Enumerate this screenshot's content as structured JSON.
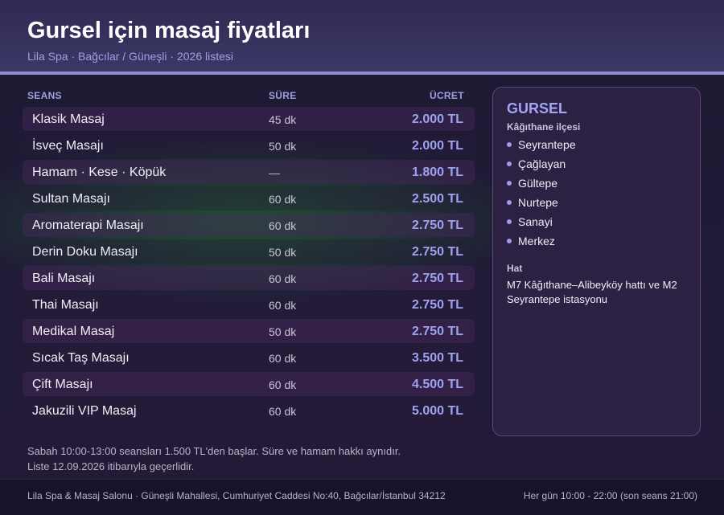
{
  "header": {
    "title": "Gursel için masaj fiyatları",
    "subtitle": "Lila Spa · Bağcılar / Güneşli · 2026 listesi"
  },
  "table": {
    "columns": {
      "session": "SEANS",
      "duration": "SÜRE",
      "price": "ÜCRET"
    },
    "rows": [
      {
        "name": "Klasik Masaj",
        "duration": "45 dk",
        "price": "2.000 TL"
      },
      {
        "name": "İsveç Masajı",
        "duration": "50 dk",
        "price": "2.000 TL"
      },
      {
        "name": "Hamam · Kese · Köpük",
        "duration": "—",
        "price": "1.800 TL"
      },
      {
        "name": "Sultan Masajı",
        "duration": "60 dk",
        "price": "2.500 TL"
      },
      {
        "name": "Aromaterapi Masajı",
        "duration": "60 dk",
        "price": "2.750 TL"
      },
      {
        "name": "Derin Doku Masajı",
        "duration": "50 dk",
        "price": "2.750 TL"
      },
      {
        "name": "Bali Masajı",
        "duration": "60 dk",
        "price": "2.750 TL"
      },
      {
        "name": "Thai Masajı",
        "duration": "60 dk",
        "price": "2.750 TL"
      },
      {
        "name": "Medikal Masaj",
        "duration": "50 dk",
        "price": "2.750 TL"
      },
      {
        "name": "Sıcak Taş Masajı",
        "duration": "60 dk",
        "price": "3.500 TL"
      },
      {
        "name": "Çift Masajı",
        "duration": "60 dk",
        "price": "4.500 TL"
      },
      {
        "name": "Jakuzili VIP Masaj",
        "duration": "60 dk",
        "price": "5.000 TL"
      }
    ]
  },
  "sidebar": {
    "title": "GURSEL",
    "subtitle": "Kâğıthane ilçesi",
    "neighborhoods": [
      "Seyrantepe",
      "Çağlayan",
      "Gültepe",
      "Nurtepe",
      "Sanayi",
      "Merkez"
    ],
    "transit_label": "Hat",
    "transit_text": "M7 Kâğıthane–Alibeyköy hattı ve M2 Seyrantepe istasyonu"
  },
  "notes": {
    "line1": "Sabah 10:00-13:00 seansları 1.500 TL'den başlar. Süre ve hamam hakkı aynıdır.",
    "line2": "Liste 12.09.2026 itibarıyla geçerlidir."
  },
  "footer": {
    "address": "Lila Spa & Masaj Salonu · Güneşli Mahallesi, Cumhuriyet Caddesi No:40, Bağcılar/İstanbul 34212",
    "hours": "Her gün 10:00 - 22:00 (son seans 21:00)"
  },
  "colors": {
    "accent": "#8e90d6",
    "price": "#9fa2f0",
    "header_bg": "#3c3866"
  }
}
